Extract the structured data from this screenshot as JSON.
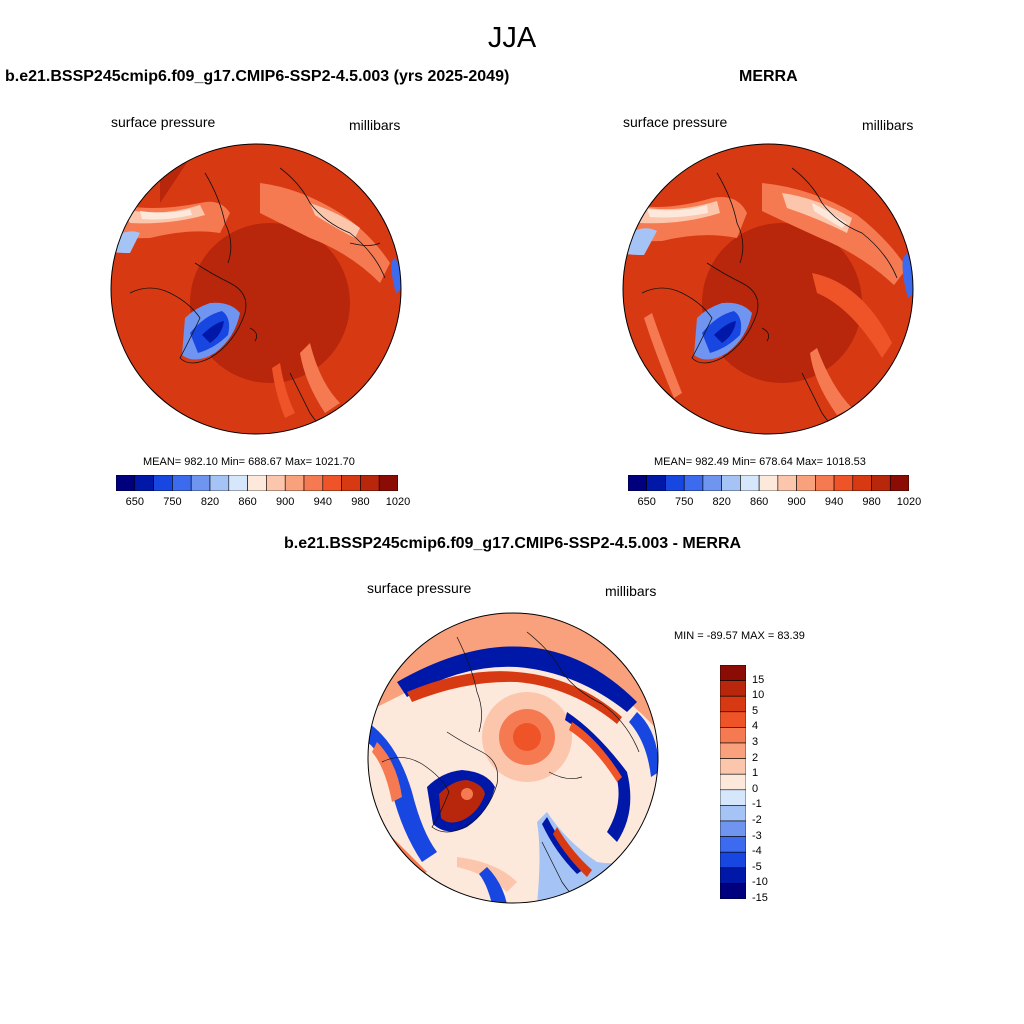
{
  "figure": {
    "title": "JJA"
  },
  "panels": {
    "model": {
      "title": "b.e21.BSSP245cmip6.f09_g17.CMIP6-SSP2-4.5.003 (yrs 2025-2049)",
      "left_label": "surface pressure",
      "right_label": "millibars",
      "stats": "MEAN= 982.10  Min= 688.67  Max= 1021.70"
    },
    "obs": {
      "title": "MERRA",
      "left_label": "surface pressure",
      "right_label": "millibars",
      "stats": "MEAN= 982.49  Min= 678.64  Max= 1018.53"
    },
    "diff": {
      "title": "b.e21.BSSP245cmip6.f09_g17.CMIP6-SSP2-4.5.003 - MERRA",
      "left_label": "surface pressure",
      "right_label": "millibars",
      "stats": "MIN = -89.57 MAX =  83.39"
    }
  },
  "colorbars": {
    "abs_colors": [
      "#00007f",
      "#0018a8",
      "#1846e0",
      "#3d6bf0",
      "#6f95f0",
      "#a6c3f5",
      "#d6e6fb",
      "#fde8dc",
      "#fcc6ad",
      "#f9a07d",
      "#f57a52",
      "#ef5328",
      "#d73a13",
      "#b8260b",
      "#8a0c05"
    ],
    "abs_labels": [
      "650",
      "750",
      "820",
      "860",
      "900",
      "940",
      "980",
      "1020"
    ],
    "diff_colors": [
      "#8a0c05",
      "#b8260b",
      "#d73a13",
      "#ef5328",
      "#f57a52",
      "#f9a07d",
      "#fcc6ad",
      "#fde8dc",
      "#d6e6fb",
      "#a6c3f5",
      "#6f95f0",
      "#3d6bf0",
      "#1846e0",
      "#0018a8",
      "#00007f"
    ],
    "diff_labels": [
      "15",
      "10",
      "5",
      "4",
      "3",
      "2",
      "1",
      "0",
      "-1",
      "-2",
      "-3",
      "-4",
      "-5",
      "-10",
      "-15"
    ]
  }
}
